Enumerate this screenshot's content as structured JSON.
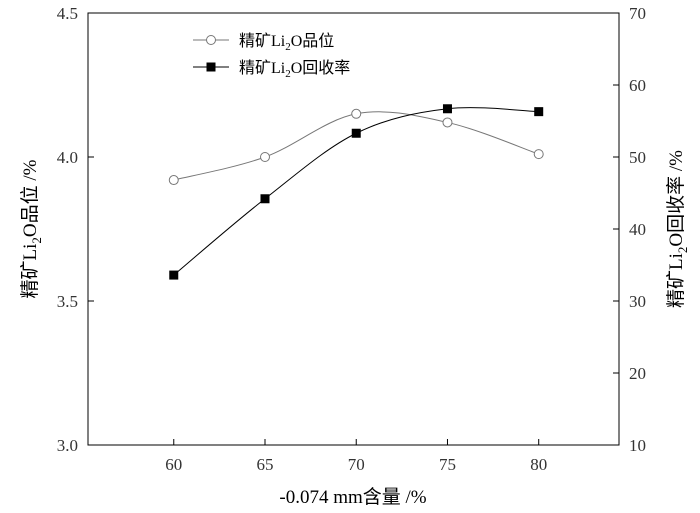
{
  "chart_data": {
    "type": "line",
    "title": "",
    "xlabel": "-0.074 mm含量  /%",
    "ylabel_left": {
      "prefix": "精矿",
      "main": "Li",
      "sub": "2",
      "suffix": "O品位  /%"
    },
    "ylabel_right": {
      "prefix": "精矿",
      "main": "Li",
      "sub": "2",
      "suffix": "O回收率  /%"
    },
    "x": [
      60,
      65,
      70,
      75,
      80
    ],
    "x_ticks": [
      "60",
      "65",
      "70",
      "75",
      "80"
    ],
    "xlim": [
      55.3,
      84.4
    ],
    "y_left_lim": [
      3.0,
      4.5
    ],
    "y_left_ticks": [
      "3.0",
      "3.5",
      "4.0",
      "4.5"
    ],
    "y_right_lim": [
      10,
      70
    ],
    "y_right_ticks": [
      "10",
      "20",
      "30",
      "40",
      "50",
      "60",
      "70"
    ],
    "grid": false,
    "legend_position": "top-left",
    "series": [
      {
        "name": "精矿Li2O品位",
        "label": {
          "prefix": "精矿",
          "main": "Li",
          "sub": "2",
          "suffix": "O品位"
        },
        "axis": "left",
        "marker": "open-circle",
        "color": "#777777",
        "values": [
          3.92,
          4.0,
          4.15,
          4.12,
          4.01
        ]
      },
      {
        "name": "精矿Li2O回收率",
        "label": {
          "prefix": "精矿",
          "main": "Li",
          "sub": "2",
          "suffix": "O回收率"
        },
        "axis": "right",
        "marker": "filled-square",
        "color": "#000000",
        "values": [
          33.6,
          44.2,
          53.3,
          56.7,
          56.3
        ]
      }
    ]
  }
}
